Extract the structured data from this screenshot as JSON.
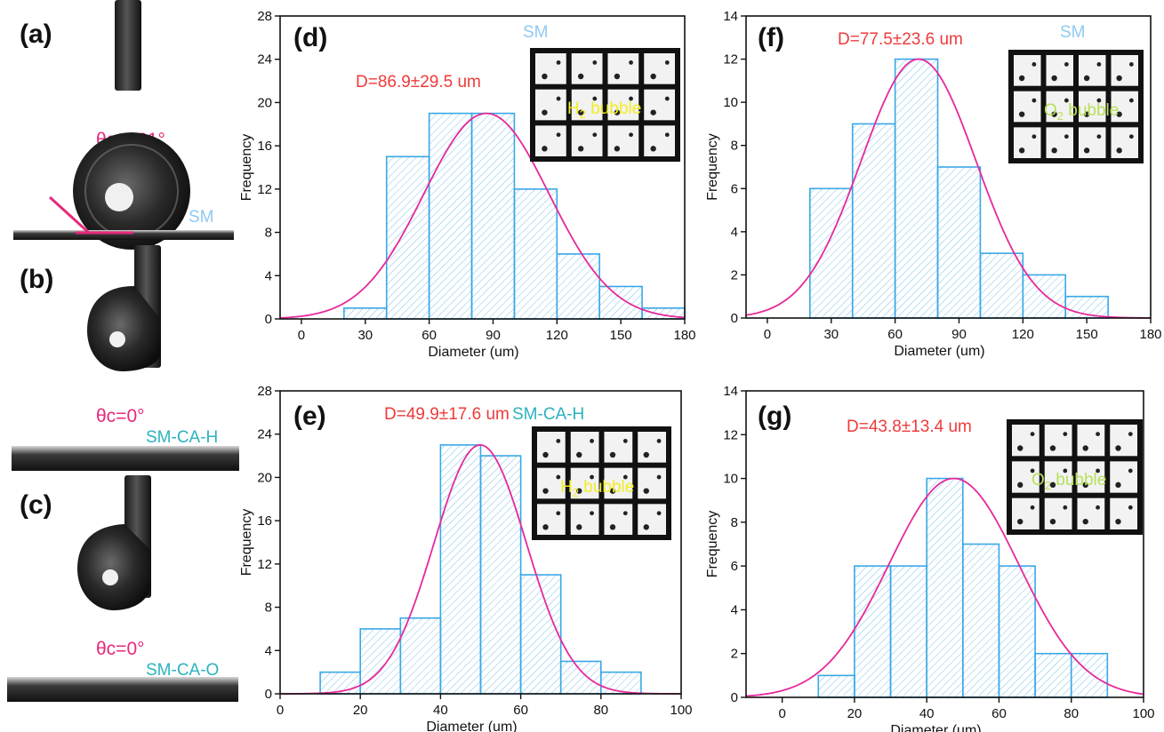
{
  "colors": {
    "bar_stroke": "#3aa7e6",
    "bar_hatch": "#7cc2ee",
    "fit_curve": "#e6299a",
    "stat_text": "#ee3a3a",
    "sample_light_blue": "#8fc9f0",
    "sample_teal": "#2ab3bf",
    "angle_pink": "#e6297a",
    "inset_label_yellow": "#f2ee22",
    "inset_label_green": "#b9e05a"
  },
  "left_panels": [
    {
      "letter": "(a)",
      "angle": "θc=131°",
      "sample": "SM"
    },
    {
      "letter": "(b)",
      "angle": "θc=0°",
      "sample": "SM-CA-H"
    },
    {
      "letter": "(c)",
      "angle": "θc=0°",
      "sample": "SM-CA-O"
    }
  ],
  "chart_data": [
    {
      "panel": "(d)",
      "type": "bar",
      "sample_label": "SM",
      "stat_label": "D=86.9±29.5 um",
      "inset_label": "bubble",
      "inset_gas": "H",
      "inset_sub": "2",
      "xlabel": "Diameter (um)",
      "ylabel": "Frequency",
      "xlim": [
        -10,
        180
      ],
      "ylim": [
        0,
        28
      ],
      "xticks": [
        0,
        30,
        60,
        90,
        120,
        150,
        180
      ],
      "yticks": [
        0,
        4,
        8,
        12,
        16,
        20,
        24,
        28
      ],
      "bin_edges": [
        20,
        40,
        60,
        80,
        100,
        120,
        140,
        160,
        180
      ],
      "values": [
        1,
        15,
        19,
        19,
        12,
        6,
        3,
        1
      ],
      "fit": {
        "amplitude": 19,
        "mean": 86.9,
        "sd": 29.5
      }
    },
    {
      "panel": "(f)",
      "type": "bar",
      "sample_label": "SM",
      "stat_label": "D=77.5±23.6 um",
      "inset_label": "bubble",
      "inset_gas": "O",
      "inset_sub": "2",
      "xlabel": "Diameter (um)",
      "ylabel": "Frequency",
      "xlim": [
        -10,
        180
      ],
      "ylim": [
        0,
        14
      ],
      "xticks": [
        0,
        30,
        60,
        90,
        120,
        150,
        180
      ],
      "yticks": [
        0,
        2,
        4,
        6,
        8,
        10,
        12,
        14
      ],
      "bin_edges": [
        20,
        40,
        60,
        80,
        100,
        120,
        140,
        160
      ],
      "values": [
        6,
        9,
        12,
        7,
        3,
        2,
        1
      ],
      "fit": {
        "amplitude": 12,
        "mean": 71,
        "sd": 27
      }
    },
    {
      "panel": "(e)",
      "type": "bar",
      "sample_label": "SM-CA-H",
      "stat_label": "D=49.9±17.6 um",
      "inset_label": "bubble",
      "inset_gas": "H",
      "inset_sub": "2",
      "xlabel": "Diameter (um)",
      "ylabel": "Frequency",
      "xlim": [
        0,
        100
      ],
      "ylim": [
        0,
        28
      ],
      "xticks": [
        0,
        20,
        40,
        60,
        80,
        100
      ],
      "yticks": [
        0,
        4,
        8,
        12,
        16,
        20,
        24,
        28
      ],
      "bin_edges": [
        10,
        20,
        30,
        40,
        50,
        60,
        70,
        80,
        90
      ],
      "values": [
        2,
        6,
        7,
        23,
        22,
        11,
        3,
        2
      ],
      "fit": {
        "amplitude": 23,
        "mean": 49.9,
        "sd": 11.5
      }
    },
    {
      "panel": "(g)",
      "type": "bar",
      "sample_label": "SM-CA-O",
      "stat_label": "D=43.8±13.4 um",
      "inset_label": "bubble",
      "inset_gas": "O",
      "inset_sub": "2",
      "xlabel": "Diameter (um)",
      "ylabel": "Frequency",
      "xlim": [
        -10,
        100
      ],
      "ylim": [
        0,
        14
      ],
      "xticks": [
        0,
        20,
        40,
        60,
        80,
        100
      ],
      "yticks": [
        0,
        2,
        4,
        6,
        8,
        10,
        12,
        14
      ],
      "bin_edges": [
        10,
        20,
        30,
        40,
        50,
        60,
        70,
        80,
        90
      ],
      "values": [
        1,
        6,
        6,
        10,
        7,
        6,
        2,
        2
      ],
      "fit": {
        "amplitude": 10,
        "mean": 47.5,
        "sd": 18
      }
    }
  ]
}
